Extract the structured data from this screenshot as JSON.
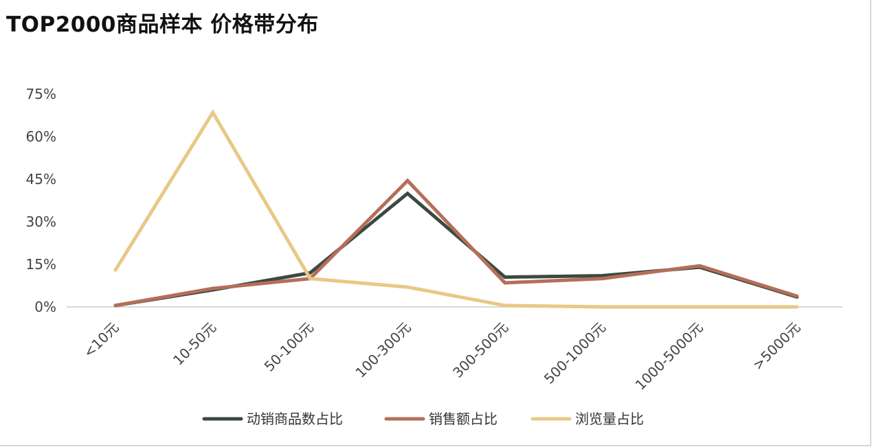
{
  "chart_data": {
    "type": "line",
    "title": "TOP2000商品样本 价格带分布",
    "categories": [
      "<10元",
      "10-50元",
      "50-100元",
      "100-300元",
      "300-500元",
      "500-1000元",
      "1000-5000元",
      ">5000元"
    ],
    "yticks": [
      "0%",
      "15%",
      "30%",
      "45%",
      "60%",
      "75%"
    ],
    "ylim": [
      0,
      75
    ],
    "grid": false,
    "legend_position": "bottom",
    "series": [
      {
        "name": "动销商品数占比",
        "color": "#3b4a3f",
        "values": [
          0.5,
          6,
          12,
          40,
          10.5,
          11,
          14,
          3.5
        ]
      },
      {
        "name": "销售额占比",
        "color": "#b56e5a",
        "values": [
          0.5,
          6.5,
          10,
          44.5,
          8.5,
          10,
          14.5,
          3.8
        ]
      },
      {
        "name": "浏览量占比",
        "color": "#e8c886",
        "values": [
          13,
          68.5,
          10,
          7,
          0.5,
          0,
          0,
          0
        ]
      }
    ]
  }
}
